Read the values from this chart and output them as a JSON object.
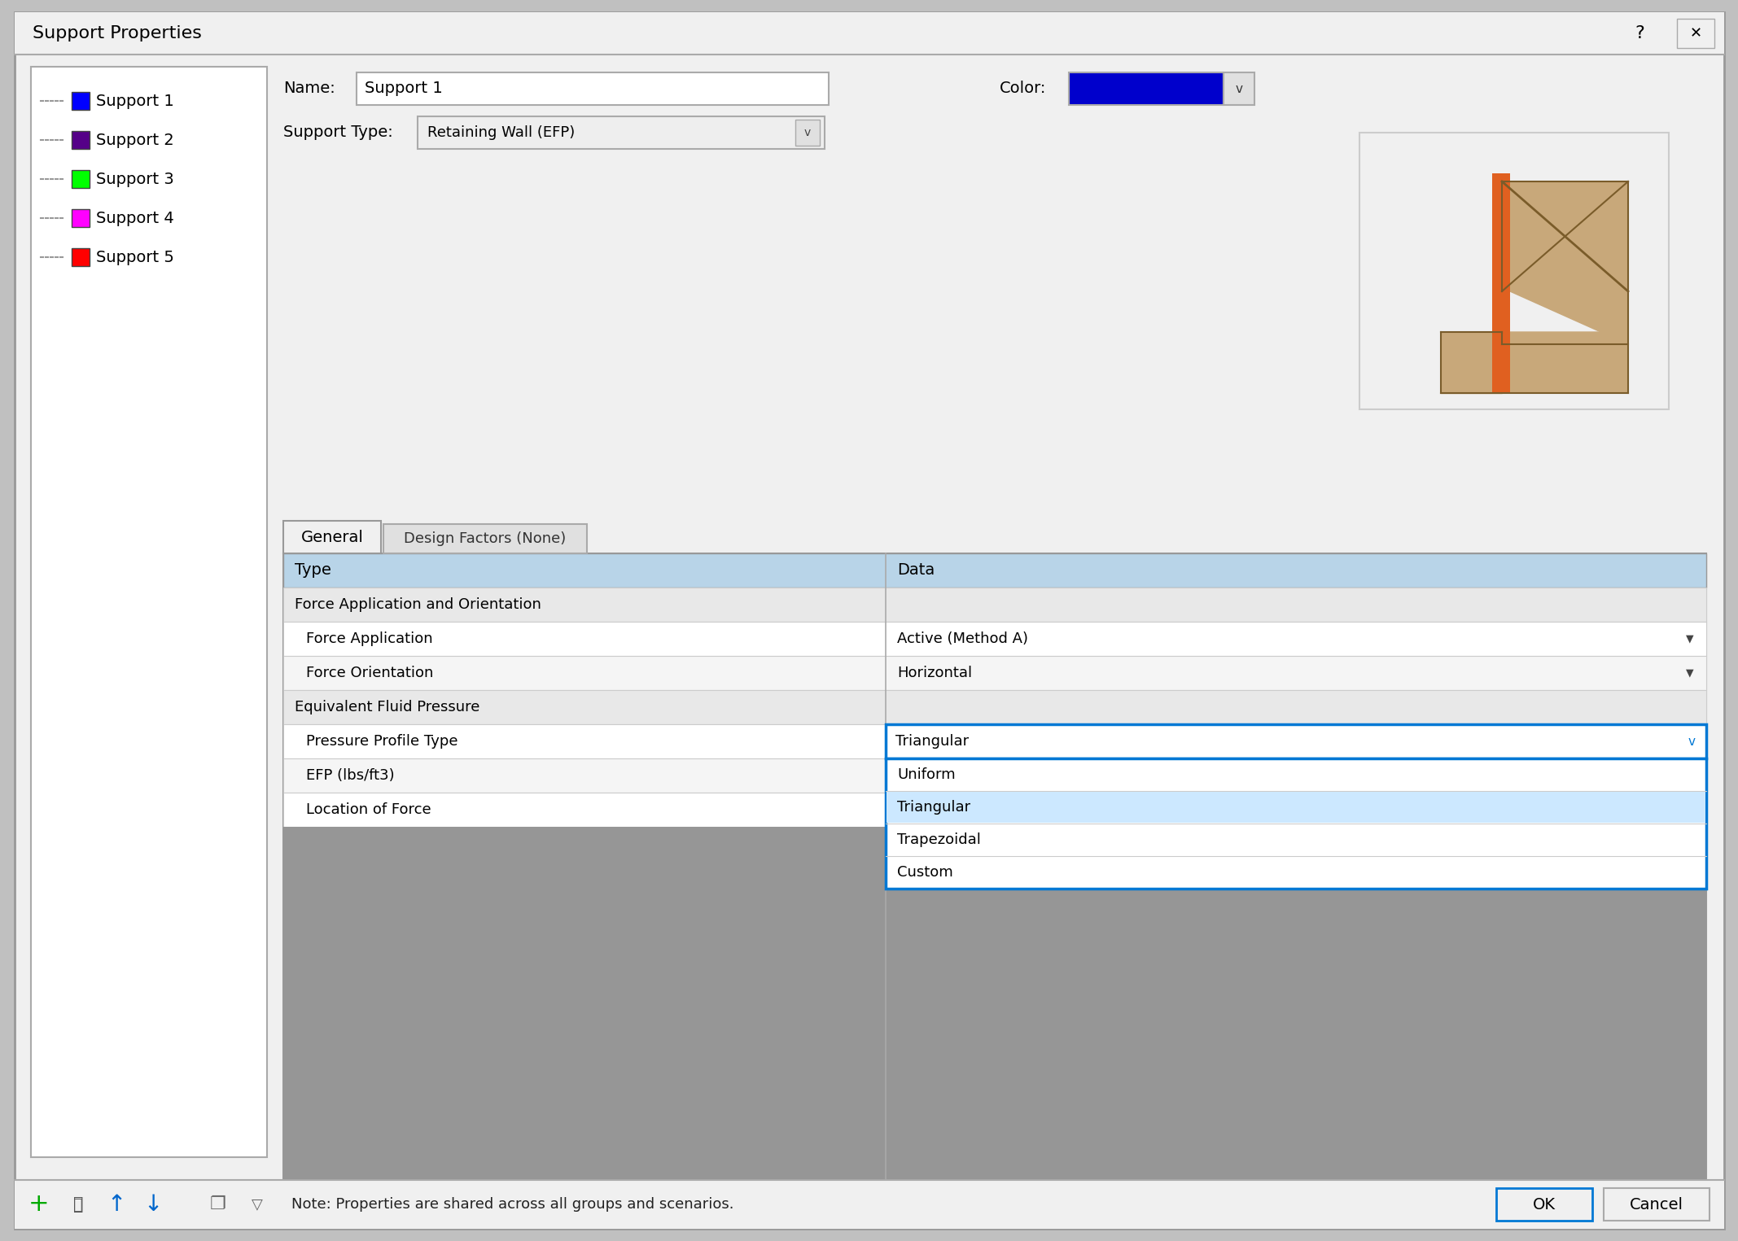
{
  "title": "Support Properties",
  "bg_outer": "#c0c0c0",
  "bg_dialog": "#f0f0f0",
  "bg_white": "#ffffff",
  "supports": [
    {
      "name": "Support 1",
      "color": "#0000ff"
    },
    {
      "name": "Support 2",
      "color": "#550088"
    },
    {
      "name": "Support 3",
      "color": "#00ff00"
    },
    {
      "name": "Support 4",
      "color": "#ff00ff"
    },
    {
      "name": "Support 5",
      "color": "#ff0000"
    }
  ],
  "name_label": "Name:",
  "name_value": "Support 1",
  "color_label": "Color:",
  "color_swatch": "#0000cc",
  "support_type_label": "Support Type:",
  "support_type_value": "Retaining Wall (EFP)",
  "tab_general": "General",
  "tab_design": "Design Factors (None)",
  "col_type": "Type",
  "col_data": "Data",
  "section1": "Force Application and Orientation",
  "row1_label": "Force Application",
  "row1_value": "Active (Method A)",
  "row2_label": "Force Orientation",
  "row2_value": "Horizontal",
  "section2": "Equivalent Fluid Pressure",
  "row3_label": "Pressure Profile Type",
  "row3_value": "Triangular",
  "row4_label": "EFP (lbs/ft3)",
  "row5_label": "Location of Force",
  "dropdown_items": [
    "Uniform",
    "Triangular",
    "Trapezoidal",
    "Custom"
  ],
  "dropdown_selected": "Triangular",
  "footer_note": "Note: Properties are shared across all groups and scenarios.",
  "btn_ok": "OK",
  "btn_cancel": "Cancel",
  "dropdown_border": "#0078d4",
  "selected_bg": "#cce8ff",
  "header_bg": "#b8d4e8",
  "section_bg": "#e8e8e8",
  "row_alt_bg": "#f5f5f5",
  "grey_area": "#969696",
  "wall_tan": "#c8a87a",
  "wall_orange": "#e06020"
}
